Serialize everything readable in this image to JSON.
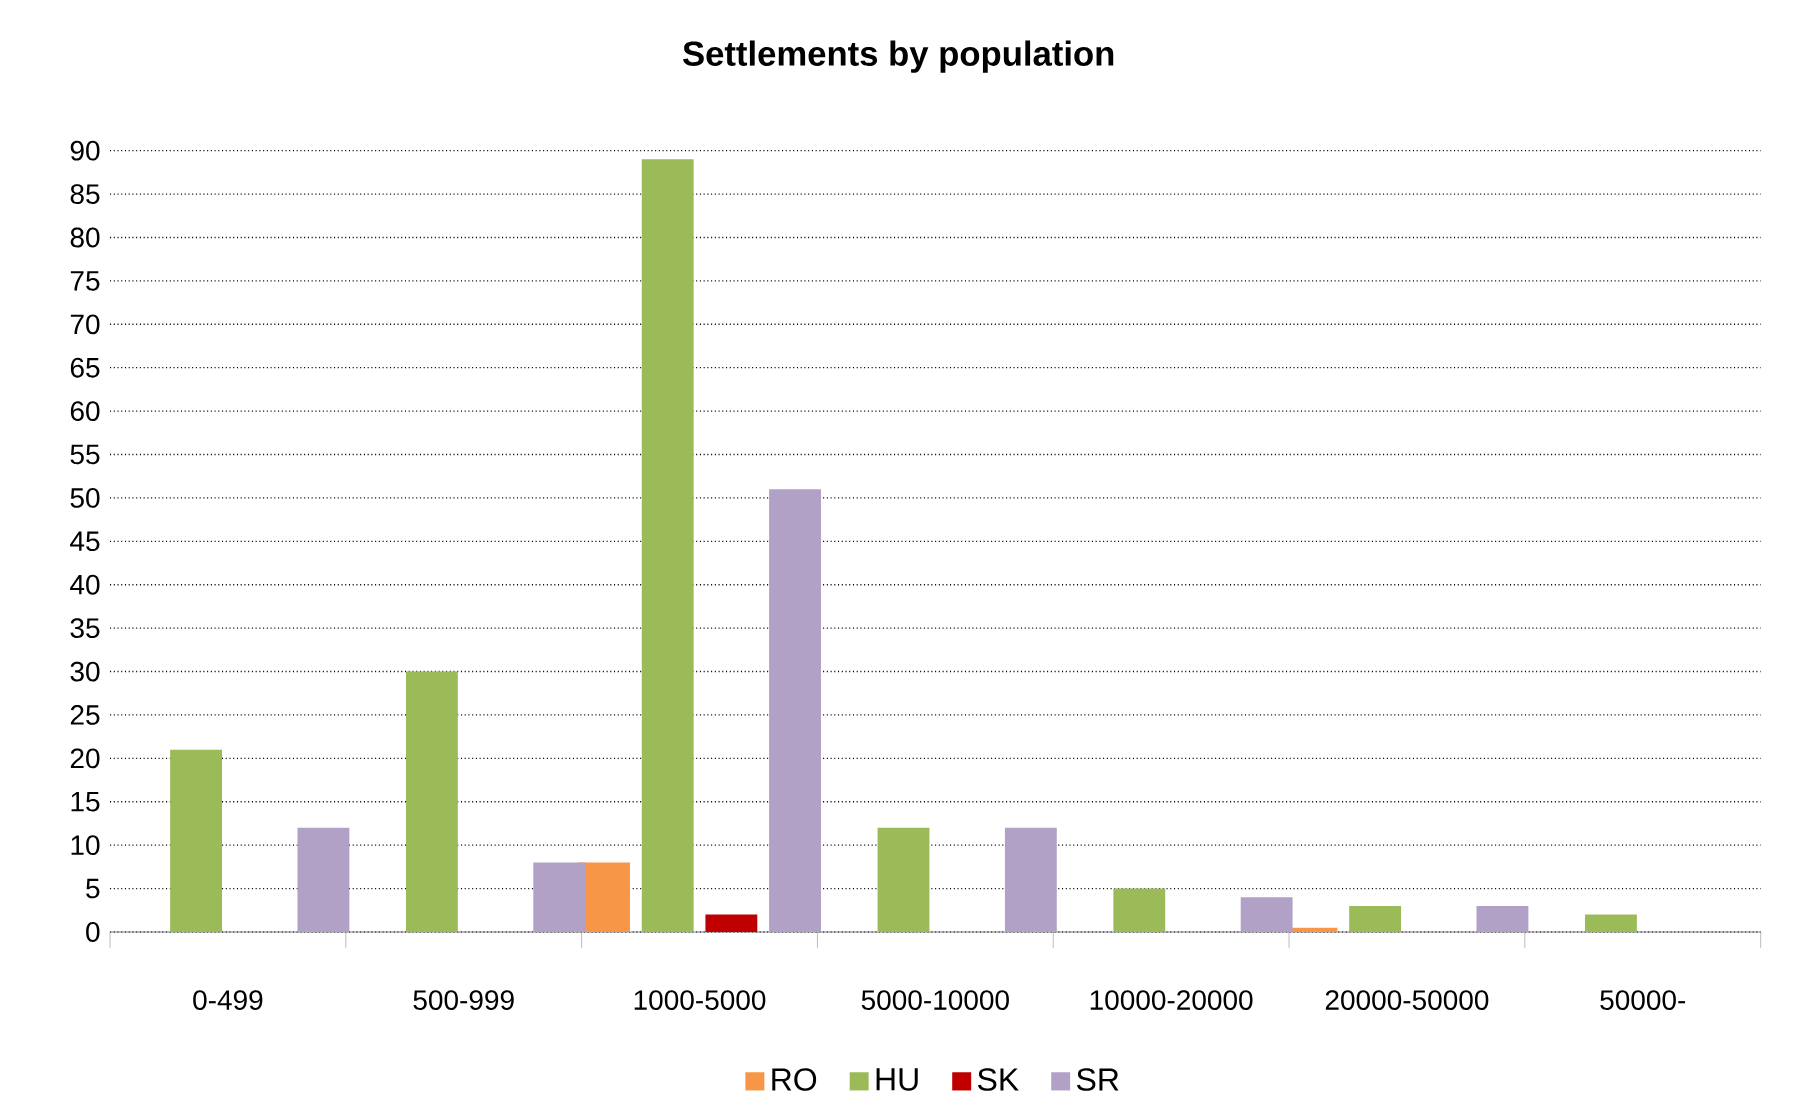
{
  "chart_data": {
    "type": "bar",
    "title": "Settlements by population",
    "categories": [
      "0-499",
      "500-999",
      "1000-5000",
      "5000-10000",
      "10000-20000",
      "20000-50000",
      "50000-"
    ],
    "series": [
      {
        "name": "RO",
        "color": "#f79646",
        "values": [
          0,
          0,
          8,
          0,
          0,
          0.5,
          0
        ]
      },
      {
        "name": "HU",
        "color": "#9bbb59",
        "values": [
          21,
          30,
          89,
          12,
          5,
          3,
          2
        ]
      },
      {
        "name": "SK",
        "color": "#c00000",
        "values": [
          0,
          0,
          2,
          0,
          0,
          0,
          0
        ]
      },
      {
        "name": "SR",
        "color": "#b2a1c7",
        "values": [
          12,
          8,
          51,
          12,
          4,
          3,
          0
        ]
      }
    ],
    "ylim": [
      0,
      90
    ],
    "yticks": [
      0,
      5,
      10,
      15,
      20,
      25,
      30,
      35,
      40,
      45,
      50,
      55,
      60,
      65,
      70,
      75,
      80,
      85,
      90
    ],
    "grid": "y",
    "legend": "bottom"
  }
}
